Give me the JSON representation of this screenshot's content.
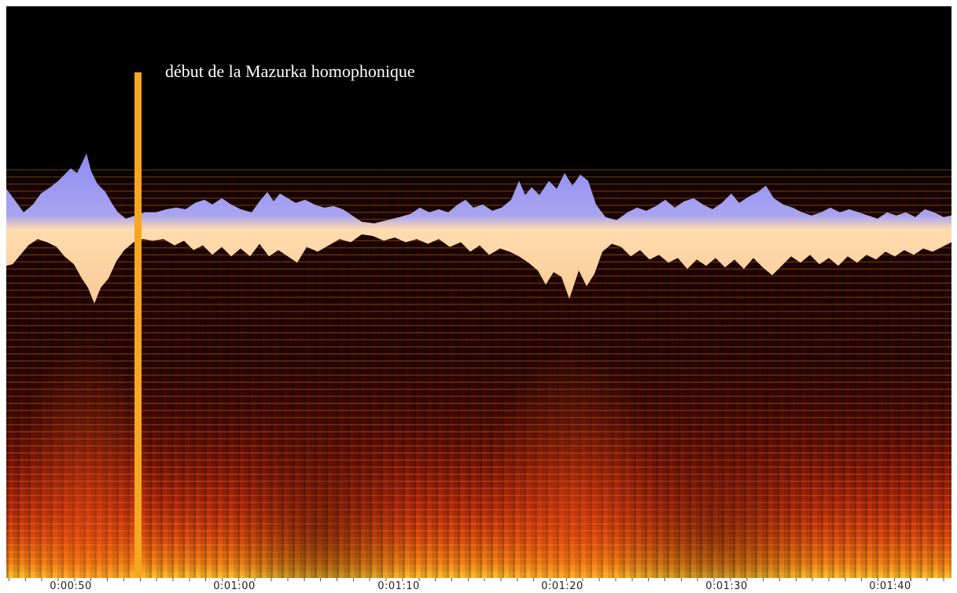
{
  "annotation": "début de la Mazurka homophonique",
  "timeline": {
    "labels": [
      "0:00:50",
      "0:01:00",
      "0:01:10",
      "0:01:20",
      "0:01:30",
      "0:01:40"
    ]
  }
}
